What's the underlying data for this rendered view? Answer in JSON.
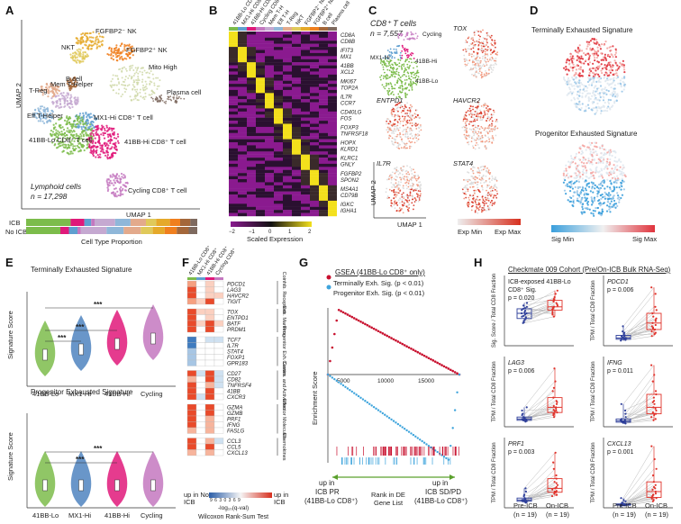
{
  "panels": {
    "A": {
      "label": "A",
      "clusters": [
        "FGFBP2⁻ NK",
        "FGFBP2⁺ NK",
        "NKT",
        "B cell",
        "Mito High",
        "T-Reg",
        "Mem T-Helper",
        "Plasma cell",
        "Eff T-Helper",
        "MX1-Hi CD8⁺ T cell",
        "41BB-Lo CD8⁺ T cell",
        "41BB-Hi CD8⁺ T cell",
        "Cycling CD8⁺ T cell"
      ],
      "caption_line1": "Lymphoid cells",
      "caption_line2": "n = 17,298",
      "xlabel": "UMAP 1",
      "ylabel": "UMAP 2",
      "bar_labels": [
        "ICB",
        "No ICB"
      ],
      "bar_title": "Cell Type Proportion",
      "colors": {
        "nk_neg": "#e5a92a",
        "nk_pos": "#f07f1e",
        "nkt": "#e0c95a",
        "bcell": "#a4673a",
        "mito": "#cfd8a8",
        "treg": "#e3aa8c",
        "memth": "#c5a9d1",
        "plasma": "#7e6a5f",
        "effth": "#8fb7d9",
        "mx1": "#5f9fd0",
        "lo": "#7cbc4b",
        "hi": "#e0197a",
        "cyc": "#c478c0"
      }
    },
    "B": {
      "label": "B",
      "columns": [
        "41BB-Lo CD8⁺",
        "MX1-Hi CD8⁺",
        "41BB-Hi CD8⁺",
        "Cycling CD8⁺",
        "Mem T-H",
        "Eff T-H",
        "T-Reg",
        "NKT",
        "FGFBP2⁻ NK",
        "FGFBP2⁺ NK",
        "B cell",
        "Plasma cell"
      ],
      "genes": [
        [
          "CD8A",
          "CD8B"
        ],
        [
          "IFIT3",
          "MX1"
        ],
        [
          "41BB",
          "XCL2"
        ],
        [
          "MKI67",
          "TOP2A"
        ],
        [
          "IL7R",
          "CCR7"
        ],
        [
          "CD40LG",
          "FOS"
        ],
        [
          "FOXP3",
          "TNFRSF18"
        ],
        [
          "HOPX",
          "KLRD1"
        ],
        [
          "KLRC1",
          "GNLY"
        ],
        [
          "FGFBP2",
          "SPON2"
        ],
        [
          "MS4A1",
          "CD79B"
        ],
        [
          "IGKC",
          "IGHA1"
        ]
      ],
      "colorbar_ticks": [
        "−2",
        "−1",
        "0",
        "1",
        "2"
      ],
      "colorbar_title": "Scaled Expression"
    },
    "C": {
      "label": "C",
      "title": "CD8⁺ T cells",
      "n": "n = 7,557",
      "cluster_labels": [
        "Cycling",
        "MX1-Hi",
        "41BB-Hi",
        "41BB-Lo"
      ],
      "genes": [
        "TOX",
        "ENTPD1",
        "HAVCR2",
        "IL7R",
        "STAT4"
      ],
      "xlabel": "UMAP 1",
      "ylabel": "UMAP 2",
      "scale_min": "Exp Min",
      "scale_max": "Exp Max"
    },
    "D": {
      "label": "D",
      "sig1": "Terminally Exhausted Signature",
      "sig2": "Progenitor Exhausted Signature",
      "scale_min": "Sig Min",
      "scale_max": "Sig Max"
    },
    "E": {
      "label": "E",
      "title1": "Terminally Exhausted Signature",
      "title2": "Progenitor Exhausted Signature",
      "ylabel": "Signature Score",
      "groups": [
        "41BB-Lo",
        "MX1-Hi",
        "41BB-Hi",
        "Cycling"
      ],
      "group_colors": [
        "#7cbc4b",
        "#4f84bf",
        "#e0197a",
        "#c478c0"
      ],
      "stars": "***"
    },
    "F": {
      "label": "F",
      "columns": [
        "41BB-Lo CD8⁺",
        "MX1-Hi CD8⁺",
        "41BB-Hi CD8⁺",
        "Cycling CD8⁺"
      ],
      "groups": [
        {
          "name": "Coinhib. Receptors",
          "genes": [
            "PDCD1",
            "LAG3",
            "HAVCR2",
            "TIGIT"
          ]
        },
        {
          "name": "Exh. Markers",
          "genes": [
            "TOX",
            "ENTPD1",
            "BATF",
            "PRDM1"
          ]
        },
        {
          "name": "Progenitor Exh. Genes",
          "genes": [
            "TCF7",
            "IL7R",
            "STAT4",
            "FOXP1",
            "GPR183"
          ]
        },
        {
          "name": "Costim. and Activation",
          "genes": [
            "CD27",
            "CD82",
            "TNFRSF4",
            "41BB",
            "CXCR3"
          ]
        },
        {
          "name": "Effector Molecules",
          "genes": [
            "GZMA",
            "GZMB",
            "PRF1",
            "IFNG",
            "FASLG"
          ]
        },
        {
          "name": "Chemokines",
          "genes": [
            "CCL3",
            "CCL5",
            "CXCL13"
          ]
        }
      ],
      "scale_left": "up in No ICB",
      "scale_right": "up in ICB",
      "scale_ticks": "9 6 3 0 3 6 9",
      "scale_title": "-log₁₀(q-val)",
      "test_name": "Wilcoxon Rank-Sum Test"
    },
    "G": {
      "label": "G",
      "title": "GSEA (41BB-Lo CD8⁺ only)",
      "legend1": "Terminally Exh. Sig. (p < 0.01)",
      "legend2": "Progenitor Exh. Sig. (p < 0.01)",
      "ylabel": "Enrichment Score",
      "xticks": [
        "5000",
        "10000",
        "15000"
      ],
      "left_text": [
        "up in",
        "ICB PR",
        "(41BB-Lo CD8⁺)"
      ],
      "mid_text": [
        "Rank in DE",
        "Gene List"
      ],
      "right_text": [
        "up in",
        "ICB SD/PD",
        "(41BB-Lo CD8⁺)"
      ],
      "colors": {
        "term": "#c8102e",
        "prog": "#3ea4dc"
      }
    },
    "H": {
      "label": "H",
      "title": "Checkmate 009 Cohort (Pre/On-ICB Bulk RNA-Seq)",
      "plots": [
        {
          "gene": "ICB-exposed 41BB-Lo CD8⁺ Sig.",
          "p": "p = 0.020",
          "ylabel": "Sig. Score / Total CD8 Fraction",
          "pre": [
            0.42,
            0.5,
            0.55,
            0.6,
            0.46,
            0.38,
            0.52,
            0.58,
            0.44,
            0.66,
            0.35,
            0.48,
            0.54,
            0.4,
            0.62,
            0.5,
            0.45,
            0.57,
            0.36
          ],
          "on": [
            0.55,
            0.62,
            0.7,
            0.48,
            0.66,
            0.58,
            0.75,
            0.52,
            0.6,
            0.8,
            0.45,
            0.68,
            0.56,
            0.64,
            0.72,
            0.5,
            0.6,
            0.85,
            0.58
          ]
        },
        {
          "gene": "PDCD1",
          "p": "p = 0.006",
          "ylabel": "TPM / Total CD8 Fraction",
          "pre": [
            0.1,
            0.12,
            0.15,
            0.08,
            0.2,
            0.1,
            0.14,
            0.18,
            0.09,
            0.11,
            0.16,
            0.22,
            0.13,
            0.1,
            0.12,
            0.15,
            0.3,
            0.1,
            0.12
          ],
          "on": [
            0.2,
            0.35,
            0.5,
            0.15,
            0.4,
            0.28,
            0.6,
            0.22,
            0.45,
            0.3,
            0.18,
            0.8,
            0.25,
            0.38,
            0.55,
            0.32,
            0.9,
            0.26,
            0.42
          ]
        },
        {
          "gene": "LAG3",
          "p": "p = 0.006",
          "ylabel": "TPM / Total CD8 Fraction",
          "pre": [
            0.08,
            0.1,
            0.12,
            0.15,
            0.1,
            0.09,
            0.2,
            0.11,
            0.13,
            0.1,
            0.25,
            0.12,
            0.14,
            0.1,
            0.18,
            0.11,
            0.09,
            0.3,
            0.12
          ],
          "on": [
            0.15,
            0.25,
            0.4,
            0.2,
            0.35,
            0.18,
            0.55,
            0.3,
            0.22,
            0.6,
            0.28,
            0.45,
            0.2,
            0.32,
            0.7,
            0.24,
            0.38,
            0.9,
            0.26
          ]
        },
        {
          "gene": "IFNG",
          "p": "p = 0.011",
          "ylabel": "TPM / Total CD8 Fraction",
          "pre": [
            0.05,
            0.08,
            0.1,
            0.06,
            0.12,
            0.07,
            0.09,
            0.2,
            0.06,
            0.08,
            0.1,
            0.25,
            0.07,
            0.09,
            0.15,
            0.06,
            0.08,
            0.35,
            0.1
          ],
          "on": [
            0.1,
            0.2,
            0.35,
            0.15,
            0.4,
            0.25,
            0.55,
            0.18,
            0.3,
            0.7,
            0.22,
            0.45,
            0.12,
            0.38,
            0.8,
            0.28,
            0.5,
            0.95,
            0.2
          ]
        },
        {
          "gene": "PRF1",
          "p": "p = 0.003",
          "ylabel": "TPM / Total CD8 Fraction",
          "pre": [
            0.1,
            0.12,
            0.08,
            0.15,
            0.1,
            0.09,
            0.2,
            0.11,
            0.13,
            0.1,
            0.18,
            0.12,
            0.14,
            0.1,
            0.25,
            0.11,
            0.09,
            0.3,
            0.12
          ],
          "on": [
            0.18,
            0.25,
            0.3,
            0.2,
            0.4,
            0.22,
            0.5,
            0.28,
            0.35,
            0.6,
            0.24,
            0.45,
            0.2,
            0.32,
            0.7,
            0.26,
            0.38,
            0.85,
            0.3
          ]
        },
        {
          "gene": "CXCL13",
          "p": "p = 0.001",
          "ylabel": "TPM / Total CD8 Fraction",
          "pre": [
            0.03,
            0.05,
            0.04,
            0.06,
            0.05,
            0.04,
            0.08,
            0.05,
            0.06,
            0.04,
            0.1,
            0.05,
            0.06,
            0.04,
            0.12,
            0.05,
            0.04,
            0.15,
            0.05
          ],
          "on": [
            0.1,
            0.2,
            0.3,
            0.15,
            0.35,
            0.12,
            0.5,
            0.25,
            0.18,
            0.6,
            0.22,
            0.4,
            0.14,
            0.28,
            0.75,
            0.2,
            0.32,
            0.95,
            0.16
          ]
        }
      ],
      "xlabels": [
        [
          "Pre-ICB",
          "(n = 19)"
        ],
        [
          "On-ICB",
          "(n = 19)"
        ]
      ]
    }
  }
}
